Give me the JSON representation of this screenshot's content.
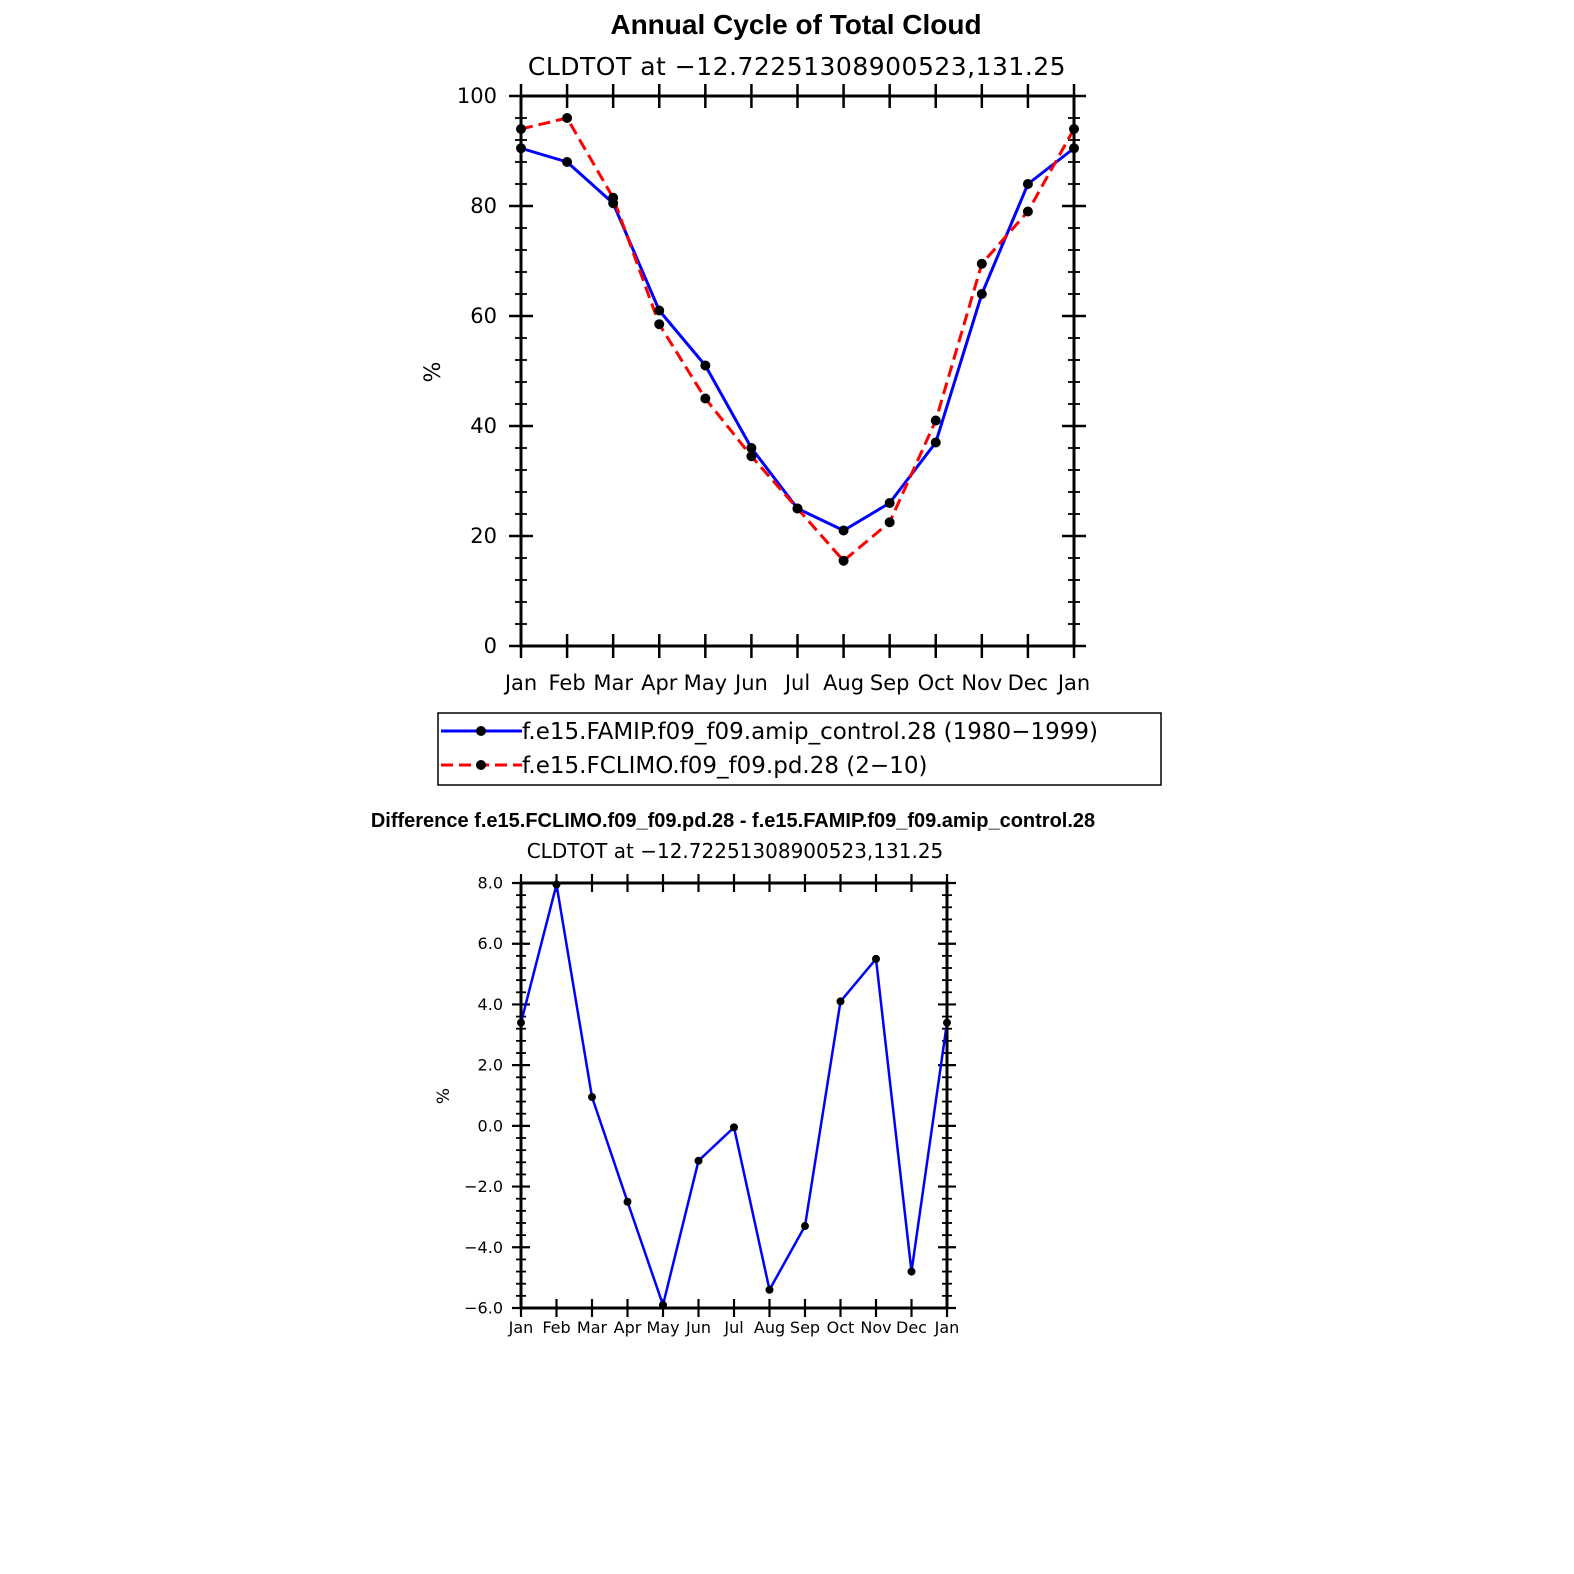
{
  "figure_title": "Annual Cycle of Total Cloud",
  "diff_title": "Difference f.e15.FCLIMO.f09_f09.pd.28 - f.e15.FAMIP.f09_f09.amip_control.28",
  "colors": {
    "series1": "#0000ff",
    "series2": "#ff0000",
    "marker": "#000000",
    "axis": "#000000"
  },
  "chart_data": [
    {
      "id": "annual-cycle",
      "type": "line",
      "title": "CLDTOT at −12.72251308900523,131.25",
      "xlabel": "",
      "ylabel": "%",
      "categories": [
        "Jan",
        "Feb",
        "Mar",
        "Apr",
        "May",
        "Jun",
        "Jul",
        "Aug",
        "Sep",
        "Oct",
        "Nov",
        "Dec",
        "Jan"
      ],
      "ylim": [
        0,
        100
      ],
      "yticks": [
        0,
        20,
        40,
        60,
        80,
        100
      ],
      "ytick_labels": [
        "0",
        "20",
        "40",
        "60",
        "80",
        "100"
      ],
      "grid": false,
      "legend_position": "bottom",
      "series": [
        {
          "name": "f.e15.FAMIP.f09_f09.amip_control.28 (1980−1999)",
          "style": "solid",
          "values": [
            90.5,
            88,
            80.5,
            61,
            51,
            36,
            25,
            21,
            26,
            37,
            64,
            84,
            90.5
          ]
        },
        {
          "name": "f.e15.FCLIMO.f09_f09.pd.28 (2−10)",
          "style": "dashed",
          "values": [
            94,
            96,
            81.5,
            58.5,
            45,
            34.5,
            25,
            15.5,
            22.5,
            41,
            69.5,
            79,
            94
          ]
        }
      ]
    },
    {
      "id": "difference",
      "type": "line",
      "title": "CLDTOT at −12.72251308900523,131.25",
      "xlabel": "",
      "ylabel": "%",
      "categories": [
        "Jan",
        "Feb",
        "Mar",
        "Apr",
        "May",
        "Jun",
        "Jul",
        "Aug",
        "Sep",
        "Oct",
        "Nov",
        "Dec",
        "Jan"
      ],
      "ylim": [
        -6,
        8
      ],
      "yticks": [
        -6,
        -4,
        -2,
        0,
        2,
        4,
        6,
        8
      ],
      "ytick_labels": [
        "−6.0",
        "−4.0",
        "−2.0",
        "0.0",
        "2.0",
        "4.0",
        "6.0",
        "8.0"
      ],
      "grid": false,
      "series": [
        {
          "name": "difference",
          "style": "solid",
          "values": [
            3.4,
            7.95,
            0.95,
            -2.5,
            -5.9,
            -1.15,
            -0.05,
            -5.4,
            -3.3,
            4.1,
            5.5,
            -4.8,
            3.4
          ]
        }
      ]
    }
  ]
}
